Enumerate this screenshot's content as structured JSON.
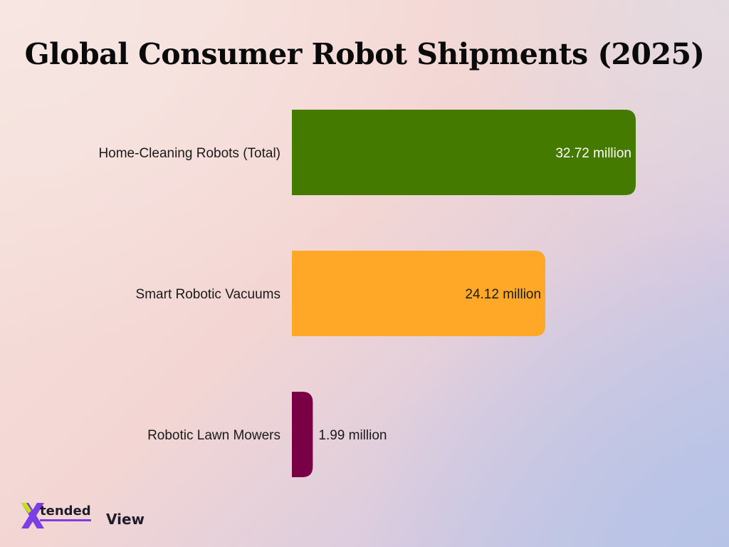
{
  "chart_data": {
    "type": "bar",
    "orientation": "horizontal",
    "title": "Global Consumer Robot Shipments (2025)",
    "categories": [
      "Home-Cleaning Robots (Total)",
      "Smart Robotic Vacuums",
      "Robotic Lawn Mowers"
    ],
    "values": [
      32.72,
      24.12,
      1.99
    ],
    "value_labels": [
      "32.72 million",
      "24.12 million",
      "1.99 million"
    ],
    "colors": [
      "#457a00",
      "#ffa726",
      "#7a0046"
    ],
    "label_colors": [
      "#ffffff",
      "#1a1a1a",
      "#1a1a1a"
    ],
    "xlabel": "",
    "ylabel": "",
    "xlim": [
      0,
      33.5
    ],
    "grid": false,
    "legend": "none"
  },
  "logo": {
    "mark": "X",
    "text_a": "tended",
    "text_b": "View",
    "colors": [
      "#7b3fe4",
      "#c6e600"
    ]
  }
}
